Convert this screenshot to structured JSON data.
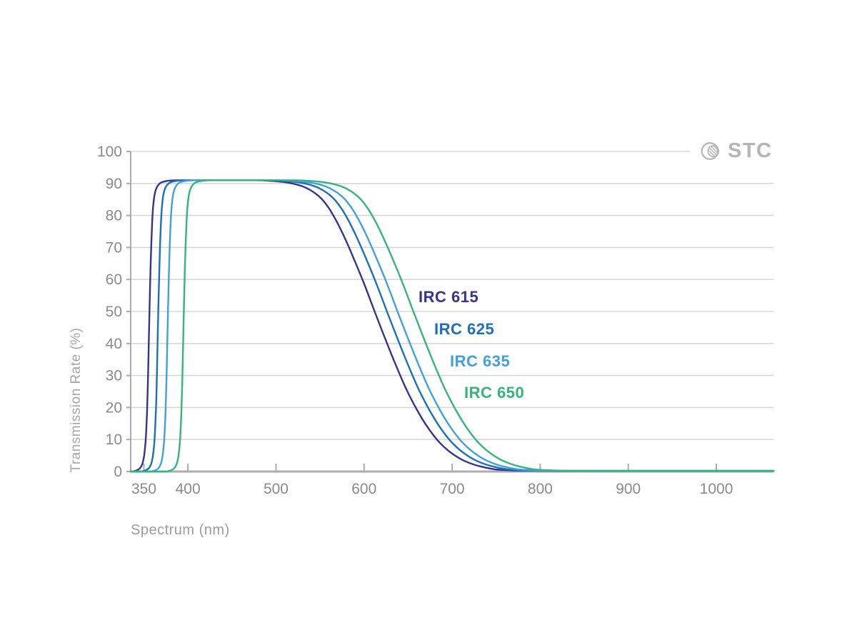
{
  "branding": {
    "logo_text": "STC"
  },
  "chart_data": {
    "type": "line",
    "title": "",
    "xlabel": "Spectrum (nm)",
    "ylabel": "Transmission Rate (%)",
    "xlim": [
      335,
      1065
    ],
    "ylim": [
      0,
      100
    ],
    "x_ticks": [
      350,
      400,
      500,
      600,
      700,
      800,
      900,
      1000
    ],
    "y_ticks": [
      0,
      10,
      20,
      30,
      40,
      50,
      60,
      70,
      80,
      90,
      100
    ],
    "grid": true,
    "legend_position": "labels inline right of falling edges",
    "plateau_transmission_pct": 91,
    "series": [
      {
        "name": "IRC 615",
        "color": "#36348C",
        "cut_on_nm": 356,
        "cut_off_nm": 612
      },
      {
        "name": "IRC 625",
        "color": "#1D70B7",
        "cut_on_nm": 366,
        "cut_off_nm": 626
      },
      {
        "name": "IRC 635",
        "color": "#41A1DC",
        "cut_on_nm": 377,
        "cut_off_nm": 638
      },
      {
        "name": "IRC 650",
        "color": "#35B579",
        "cut_on_nm": 395,
        "cut_off_nm": 656
      }
    ],
    "band_shape": {
      "rise_profile_delta_nm_vs_pct": [
        [
          -20,
          0
        ],
        [
          -15,
          0.3
        ],
        [
          -11,
          0.9
        ],
        [
          -8,
          2.2
        ],
        [
          -6,
          4.5
        ],
        [
          -4.5,
          8
        ],
        [
          -3.5,
          12
        ],
        [
          -2.5,
          18
        ],
        [
          -1.5,
          27
        ],
        [
          -0.5,
          40
        ],
        [
          0.5,
          52
        ],
        [
          1.5,
          63
        ],
        [
          2.5,
          72
        ],
        [
          3.5,
          78.5
        ],
        [
          4.5,
          82.8
        ],
        [
          6,
          86.3
        ],
        [
          8,
          88.4
        ],
        [
          10,
          89.4
        ],
        [
          13,
          90.2
        ],
        [
          17,
          90.6
        ],
        [
          23,
          90.9
        ],
        [
          32,
          91
        ]
      ],
      "fall_profile_delta_nm_vs_pct": [
        [
          -135,
          91
        ],
        [
          -112,
          90.7
        ],
        [
          -95,
          90.1
        ],
        [
          -82,
          89.1
        ],
        [
          -71,
          87.6
        ],
        [
          -61,
          85.4
        ],
        [
          -52,
          82.3
        ],
        [
          -44,
          78.6
        ],
        [
          -36,
          74.2
        ],
        [
          -28,
          69.3
        ],
        [
          -20,
          64.1
        ],
        [
          -12,
          58.7
        ],
        [
          0,
          50
        ],
        [
          12,
          41.5
        ],
        [
          24,
          33.3
        ],
        [
          36,
          25.7
        ],
        [
          48,
          19.3
        ],
        [
          60,
          13.9
        ],
        [
          74,
          9.0
        ],
        [
          88,
          5.6
        ],
        [
          103,
          3.2
        ],
        [
          120,
          1.6
        ],
        [
          140,
          0.6
        ],
        [
          165,
          0.3
        ],
        [
          200,
          0.2
        ]
      ]
    }
  }
}
